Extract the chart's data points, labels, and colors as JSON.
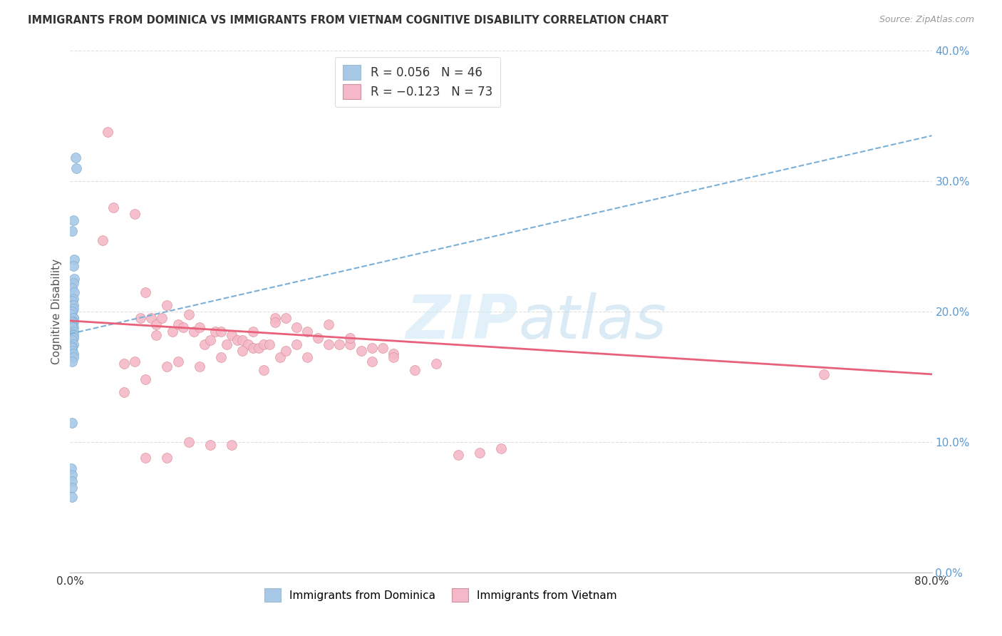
{
  "title": "IMMIGRANTS FROM DOMINICA VS IMMIGRANTS FROM VIETNAM COGNITIVE DISABILITY CORRELATION CHART",
  "source": "Source: ZipAtlas.com",
  "ylabel": "Cognitive Disability",
  "right_yticks": [
    "0.0%",
    "10.0%",
    "20.0%",
    "30.0%",
    "40.0%"
  ],
  "right_ytick_vals": [
    0.0,
    0.1,
    0.2,
    0.3,
    0.4
  ],
  "color_dominica": "#a8c8e8",
  "color_dominica_line": "#7ab0d8",
  "color_vietnam": "#f5b8c8",
  "color_vietnam_line": "#e8607a",
  "xlim": [
    0.0,
    0.8
  ],
  "ylim": [
    0.0,
    0.4
  ],
  "background_color": "#ffffff",
  "grid_color": "#e0e0e0",
  "dominica_x": [
    0.005,
    0.006,
    0.003,
    0.002,
    0.004,
    0.003,
    0.004,
    0.003,
    0.002,
    0.004,
    0.003,
    0.002,
    0.002,
    0.003,
    0.003,
    0.002,
    0.002,
    0.001,
    0.003,
    0.003,
    0.002,
    0.003,
    0.002,
    0.002,
    0.003,
    0.002,
    0.003,
    0.002,
    0.002,
    0.003,
    0.002,
    0.003,
    0.002,
    0.003,
    0.002,
    0.002,
    0.002,
    0.003,
    0.003,
    0.002,
    0.002,
    0.001,
    0.002,
    0.002,
    0.002,
    0.002
  ],
  "dominica_y": [
    0.318,
    0.31,
    0.27,
    0.262,
    0.24,
    0.235,
    0.225,
    0.222,
    0.218,
    0.215,
    0.21,
    0.208,
    0.205,
    0.205,
    0.202,
    0.2,
    0.2,
    0.198,
    0.195,
    0.195,
    0.193,
    0.192,
    0.192,
    0.19,
    0.188,
    0.188,
    0.185,
    0.183,
    0.182,
    0.182,
    0.18,
    0.18,
    0.178,
    0.175,
    0.173,
    0.172,
    0.17,
    0.168,
    0.165,
    0.162,
    0.115,
    0.08,
    0.075,
    0.07,
    0.065,
    0.058
  ],
  "vietnam_x": [
    0.035,
    0.06,
    0.065,
    0.07,
    0.075,
    0.08,
    0.085,
    0.09,
    0.095,
    0.1,
    0.105,
    0.11,
    0.115,
    0.12,
    0.125,
    0.13,
    0.135,
    0.14,
    0.145,
    0.15,
    0.155,
    0.16,
    0.165,
    0.17,
    0.175,
    0.18,
    0.185,
    0.19,
    0.195,
    0.2,
    0.21,
    0.22,
    0.23,
    0.24,
    0.25,
    0.26,
    0.27,
    0.28,
    0.29,
    0.3,
    0.03,
    0.04,
    0.05,
    0.06,
    0.07,
    0.08,
    0.09,
    0.1,
    0.12,
    0.14,
    0.16,
    0.18,
    0.2,
    0.22,
    0.24,
    0.26,
    0.28,
    0.3,
    0.32,
    0.34,
    0.36,
    0.38,
    0.4,
    0.7,
    0.05,
    0.07,
    0.09,
    0.11,
    0.13,
    0.15,
    0.17,
    0.19,
    0.21
  ],
  "vietnam_y": [
    0.338,
    0.275,
    0.195,
    0.215,
    0.195,
    0.19,
    0.195,
    0.205,
    0.185,
    0.19,
    0.188,
    0.198,
    0.185,
    0.188,
    0.175,
    0.178,
    0.185,
    0.185,
    0.175,
    0.182,
    0.178,
    0.178,
    0.175,
    0.172,
    0.172,
    0.175,
    0.175,
    0.195,
    0.165,
    0.195,
    0.188,
    0.185,
    0.18,
    0.19,
    0.175,
    0.175,
    0.17,
    0.172,
    0.172,
    0.168,
    0.255,
    0.28,
    0.16,
    0.162,
    0.148,
    0.182,
    0.158,
    0.162,
    0.158,
    0.165,
    0.17,
    0.155,
    0.17,
    0.165,
    0.175,
    0.18,
    0.162,
    0.165,
    0.155,
    0.16,
    0.09,
    0.092,
    0.095,
    0.152,
    0.138,
    0.088,
    0.088,
    0.1,
    0.098,
    0.098,
    0.185,
    0.192,
    0.175
  ]
}
